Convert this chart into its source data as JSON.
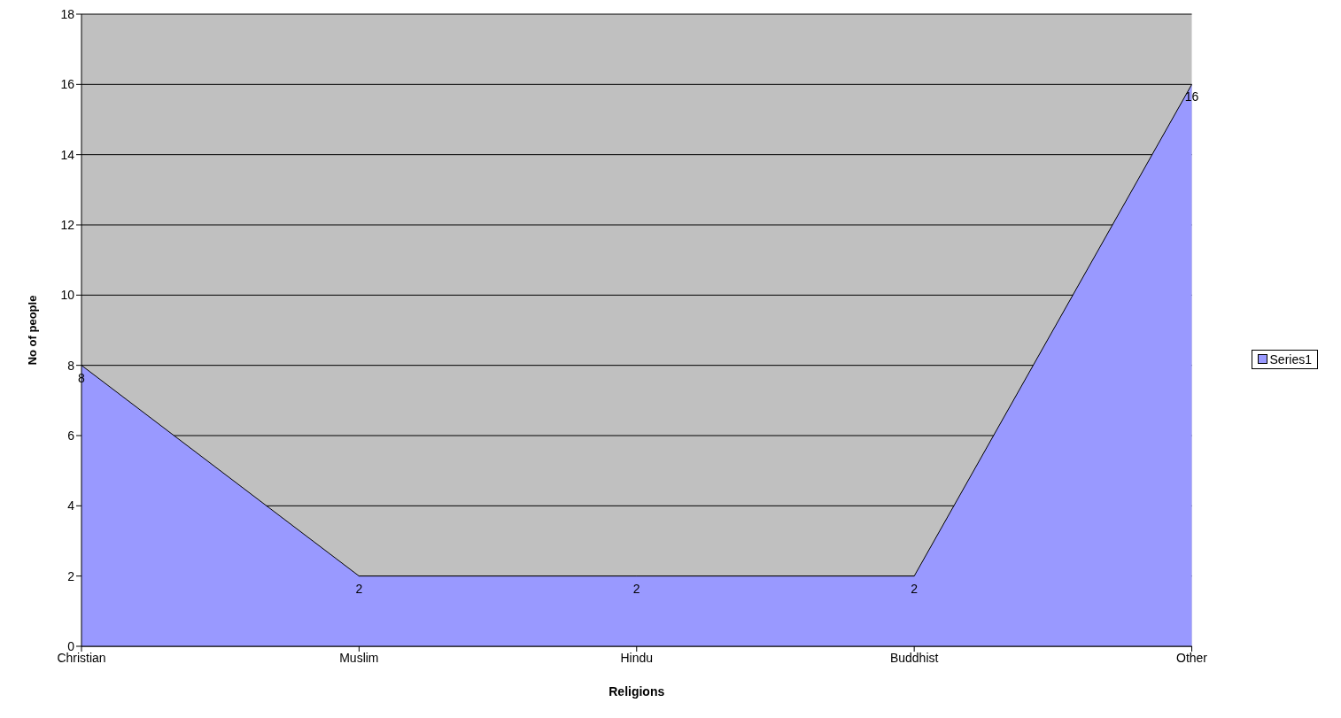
{
  "chart_data": {
    "type": "area",
    "xlabel": "Religions",
    "ylabel": "No of people",
    "categories": [
      "Christian",
      "Muslim",
      "Hindu",
      "Buddhist",
      "Other"
    ],
    "series": [
      {
        "name": "Series1",
        "color": "#9999ff",
        "values": [
          8,
          2,
          2,
          2,
          16
        ]
      }
    ],
    "ylim": [
      0,
      18
    ],
    "yticks": [
      0,
      2,
      4,
      6,
      8,
      10,
      12,
      14,
      16,
      18
    ],
    "grid": "y",
    "legend": "right",
    "data_labels": true
  }
}
